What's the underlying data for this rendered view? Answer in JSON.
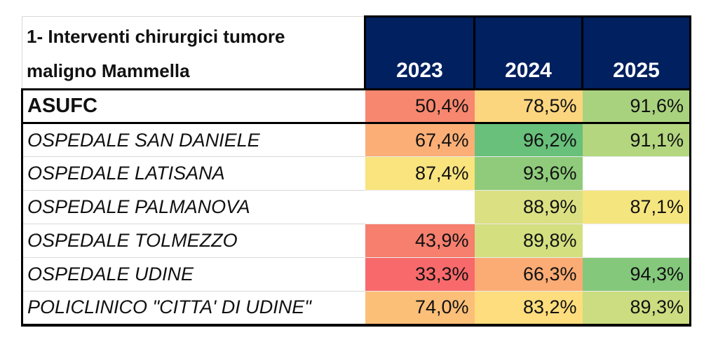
{
  "table": {
    "title_line1": "1- Interventi chirurgici tumore",
    "title_line2": "maligno Mammella",
    "years": [
      "2023",
      "2024",
      "2025"
    ],
    "rows": [
      {
        "name": "ASUFC",
        "values": [
          "50,4%",
          "78,5%",
          "91,6%"
        ],
        "colors": [
          "#F8876F",
          "#FCD57F",
          "#A9D27E"
        ]
      },
      {
        "name": "OSPEDALE SAN DANIELE",
        "values": [
          "67,4%",
          "96,2%",
          "91,1%"
        ],
        "colors": [
          "#FBAF76",
          "#68C07B",
          "#B3D67F"
        ]
      },
      {
        "name": "OSPEDALE LATISANA",
        "values": [
          "87,4%",
          "93,6%",
          ""
        ],
        "colors": [
          "#F9E47E",
          "#8FCB7B",
          "#FFFFFF"
        ]
      },
      {
        "name": "OSPEDALE PALMANOVA",
        "values": [
          "",
          "88,9%",
          "87,1%"
        ],
        "colors": [
          "#FFFFFF",
          "#DBE083",
          "#F5E57F"
        ]
      },
      {
        "name": "OSPEDALE TOLMEZZO",
        "values": [
          "43,9%",
          "89,8%",
          ""
        ],
        "colors": [
          "#F67F6E",
          "#D4DF80",
          "#FFFFFF"
        ]
      },
      {
        "name": "OSPEDALE UDINE",
        "values": [
          "33,3%",
          "66,3%",
          "94,3%"
        ],
        "colors": [
          "#F8696B",
          "#FBAC75",
          "#84C87C"
        ]
      },
      {
        "name": "POLICLINICO \"CITTA' DI UDINE\"",
        "values": [
          "74,0%",
          "83,2%",
          "89,3%"
        ],
        "colors": [
          "#FCBF78",
          "#FDDD7D",
          "#CCDC80"
        ]
      }
    ]
  },
  "colors": {
    "header_bg": "#002060",
    "header_text": "#FFFFFF",
    "outer_border": "#000000",
    "grid_gray": "#D9D9D9",
    "scale_low": "#F8696B",
    "scale_mid": "#FFEB84",
    "scale_high": "#63BE7B"
  },
  "chart_data": {
    "type": "heatmap",
    "title": "1- Interventi chirurgici tumore maligno Mammella",
    "columns": [
      "2023",
      "2024",
      "2025"
    ],
    "rows": [
      "ASUFC",
      "OSPEDALE SAN DANIELE",
      "OSPEDALE LATISANA",
      "OSPEDALE PALMANOVA",
      "OSPEDALE TOLMEZZO",
      "OSPEDALE UDINE",
      "POLICLINICO \"CITTA' DI UDINE\""
    ],
    "values_percent": [
      [
        50.4,
        78.5,
        91.6
      ],
      [
        67.4,
        96.2,
        91.1
      ],
      [
        87.4,
        93.6,
        null
      ],
      [
        null,
        88.9,
        87.1
      ],
      [
        43.9,
        89.8,
        null
      ],
      [
        33.3,
        66.3,
        94.3
      ],
      [
        74.0,
        83.2,
        89.3
      ]
    ],
    "number_format": "percent, comma decimal separator",
    "color_scale": "red-yellow-green (low to high)",
    "legend_position": "none",
    "notes": "First data row ASUFC is the aggregate (bold); hospital rows are italic; blank cells = no data"
  }
}
